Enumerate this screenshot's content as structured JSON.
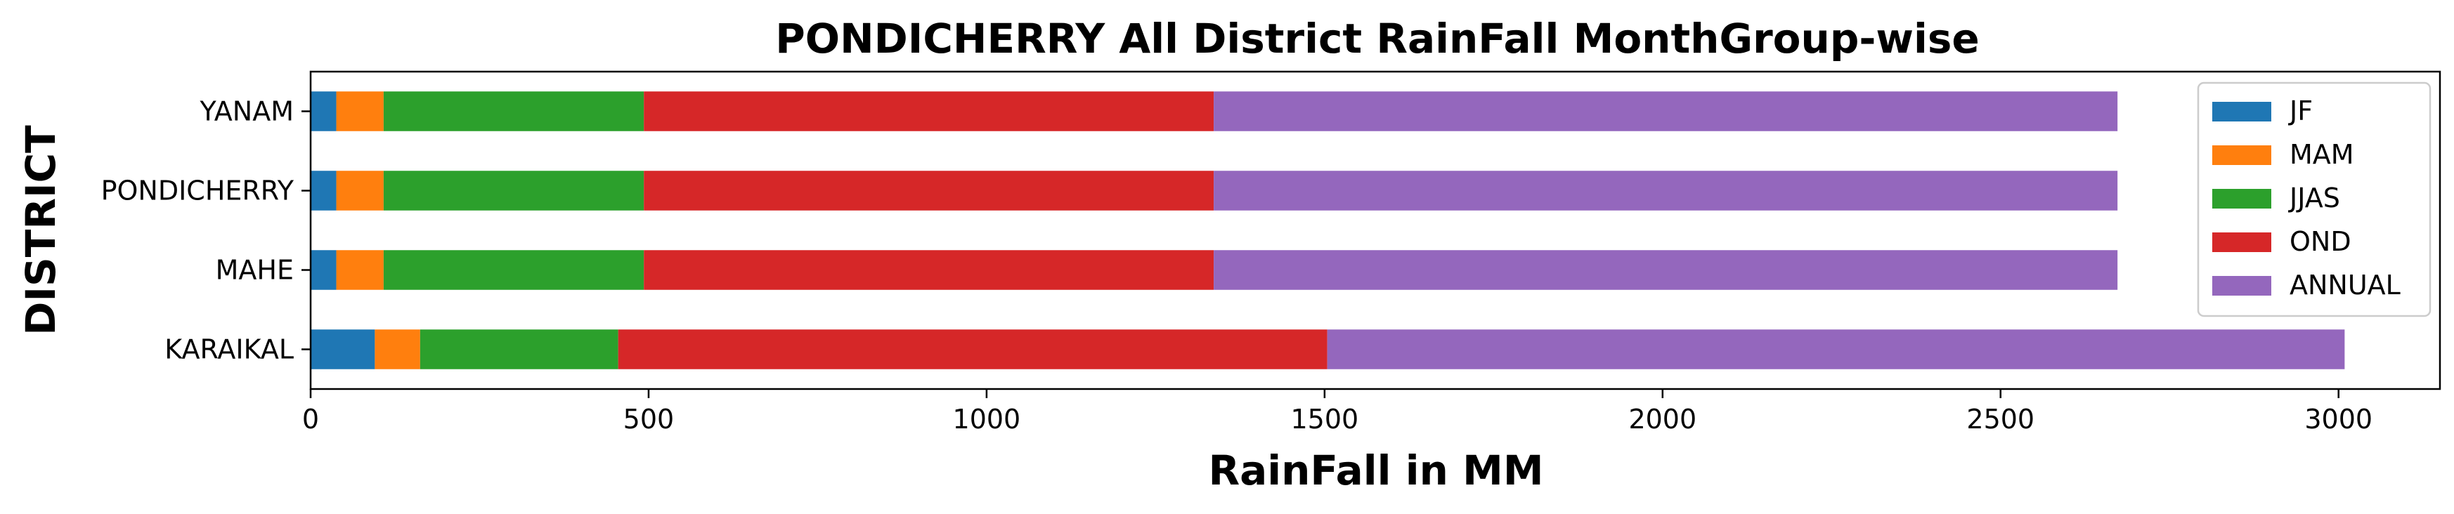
{
  "chart_data": {
    "type": "bar",
    "orientation": "horizontal",
    "stacked": true,
    "title": "PONDICHERRY All District RainFall MonthGroup-wise",
    "xlabel": "RainFall in MM",
    "ylabel": "DISTRICT",
    "categories": [
      "KARAIKAL",
      "MAHE",
      "PONDICHERRY",
      "YANAM"
    ],
    "xlim": [
      0,
      3150
    ],
    "xticks": [
      0,
      500,
      1000,
      1500,
      2000,
      2500,
      3000
    ],
    "grid": false,
    "legend_position": "top-right",
    "series": [
      {
        "name": "JF",
        "color": "#1f77b4",
        "values": [
          95,
          38,
          38,
          38
        ]
      },
      {
        "name": "MAM",
        "color": "#ff7f0e",
        "values": [
          67,
          70,
          70,
          70
        ]
      },
      {
        "name": "JJAS",
        "color": "#2ca02c",
        "values": [
          293,
          385,
          385,
          385
        ]
      },
      {
        "name": "OND",
        "color": "#d62728",
        "values": [
          1049,
          843,
          843,
          843
        ]
      },
      {
        "name": "ANNUAL",
        "color": "#9467bd",
        "values": [
          1505,
          1337,
          1337,
          1337
        ]
      }
    ]
  }
}
